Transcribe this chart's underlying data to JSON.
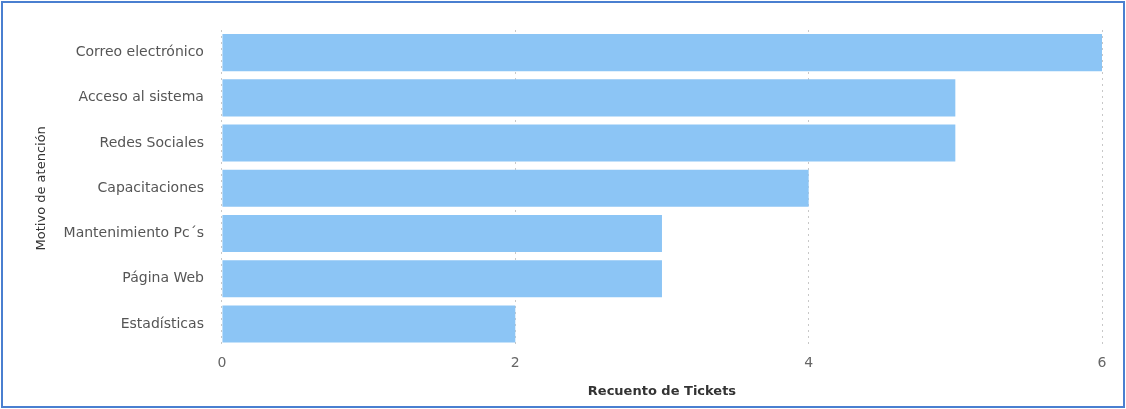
{
  "chart_data": {
    "type": "bar",
    "orientation": "horizontal",
    "xlabel": "Recuento de Tickets",
    "ylabel": "Motivo de atención",
    "categories": [
      "Correo electrónico",
      "Acceso al sistema",
      "Redes Sociales",
      "Capacitaciones",
      "Mantenimiento Pc´s",
      "Página Web",
      "Estadísticas"
    ],
    "values": [
      6,
      5,
      5,
      4,
      3,
      3,
      2
    ],
    "color": "#8cc5f5",
    "xlim": [
      0,
      6
    ],
    "xticks": [
      0,
      2,
      4,
      6
    ],
    "grid": "x",
    "legend": false
  }
}
